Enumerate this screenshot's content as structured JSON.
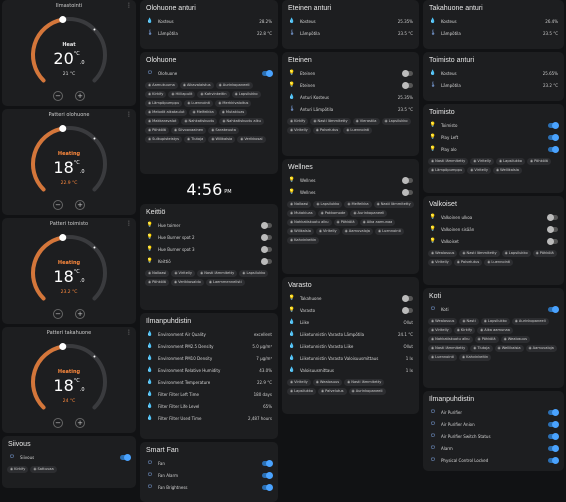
{
  "col1": {
    "thermostats": [
      {
        "name": "Ilmastointi",
        "mode": "Heat",
        "temp": "20",
        "dec": ".0",
        "unit": "°C",
        "current": "21 °C",
        "color": "#e8e8e8",
        "arc": "#d4763a"
      },
      {
        "name": "Patteri olohuone",
        "mode": "Heating",
        "temp": "18",
        "dec": ".0",
        "unit": "°C",
        "current": "22.9 °C",
        "color": "#ff8a3d",
        "arc": "#d4763a"
      },
      {
        "name": "Patteri toimisto",
        "mode": "Heating",
        "temp": "18",
        "dec": ".0",
        "unit": "°C",
        "current": "23.2 °C",
        "color": "#ff8a3d",
        "arc": "#d4763a"
      },
      {
        "name": "Patteri takahuone",
        "mode": "Heating",
        "temp": "18",
        "dec": ".0",
        "unit": "°C",
        "current": "24 °C",
        "color": "#ff8a3d",
        "arc": "#d4763a"
      }
    ],
    "siivous": {
      "title": "Siivous",
      "row": "Siivous",
      "chips": [
        "Kirkify",
        "Sattuvaa"
      ]
    }
  },
  "col2": {
    "olohuone_anturi": {
      "title": "Olohuone anturi",
      "rows": [
        {
          "label": "Kosteus",
          "value": "28.2%"
        },
        {
          "label": "Lämpötila",
          "value": "22.8 °C"
        }
      ]
    },
    "olohuone": {
      "title": "Olohuone",
      "row": "Olohuone",
      "chips": [
        "Aamukuuma",
        "Aikavalaistus",
        "Aurinkopaneeli",
        "Kirkify",
        "Hiiliapulit",
        "Kahvinkeitin",
        "Lapsilukko",
        "Lämpöpumppu",
        "Luennointi",
        "Merkkivaloitus",
        "Melodit aikataulut",
        "Melfeikka",
        "Mutakiuas",
        "Makkaravalot",
        "Nahkatiskuotu",
        "Nahkatiskuotu alku",
        "Pöhkölä",
        "Siivoovaainen",
        "Sarakeuuta",
        "Sulkupisteistys",
        "Tiutoja",
        "Wilikalsia",
        "Verikkosal"
      ]
    },
    "clock": {
      "time": "4:56",
      "ampm": "PM"
    },
    "keittio": {
      "title": "Keittiö",
      "rows": [
        "Hue toimer",
        "Hue Burner spot 2",
        "Hue Burner spot 3",
        "Keittiö"
      ],
      "chips": [
        "Nallaasi",
        "Viritelly",
        "Nasti lämmitetty",
        "Lapsilukko",
        "Pöhkölä",
        "Verikkosaldo",
        "Laemmennelisti"
      ]
    },
    "ilmanpuhdistin": {
      "title": "Ilmanpuhdistin",
      "rows": [
        {
          "label": "Environment Air Quality",
          "value": "excellent"
        },
        {
          "label": "Environment PM2.5 Density",
          "value": "5.0 µg/m³"
        },
        {
          "label": "Environment PM10 Density",
          "value": "7 µg/m³"
        },
        {
          "label": "Environment Relative Humidity",
          "value": "43.0%"
        },
        {
          "label": "Environment Temperature",
          "value": "22.9 °C"
        },
        {
          "label": "Filter Filter Left Time",
          "value": "180 days"
        },
        {
          "label": "Filter Filter Life Level",
          "value": "65%"
        },
        {
          "label": "Filter Filter Used Time",
          "value": "2,487 hours"
        }
      ]
    },
    "smartfan": {
      "title": "Smart Fan",
      "rows": [
        "Fan",
        "Fan Alarm",
        "Fan Brightness"
      ]
    }
  },
  "col3": {
    "eteinen_anturi": {
      "title": "Eteinen anturi",
      "rows": [
        {
          "label": "Kosteus",
          "value": "25.35%"
        },
        {
          "label": "Lämpötila",
          "value": "23.5 °C"
        }
      ]
    },
    "eteinen": {
      "title": "Eteinen",
      "rows": [
        {
          "label": "Eteinen",
          "value": ""
        },
        {
          "label": "Eteinen",
          "value": ""
        },
        {
          "label": "Anturi Kosteus",
          "value": "25.35%"
        },
        {
          "label": "Anturi Lämpötila",
          "value": "23.5 °C"
        }
      ],
      "chips": [
        "Kirkify",
        "Nasti lämmitetty",
        "Vierastila",
        "Lapsilukko",
        "Viritelly",
        "Palvelutus",
        "Luennointi"
      ]
    },
    "wellnes": {
      "title": "Wellnes",
      "rows": [
        "Wellnes",
        "Wellnes"
      ],
      "chips": [
        "Nallaasi",
        "Lapsilukko",
        "Melfeikka",
        "Nasti lämmitetty",
        "Mutakiuas",
        "Pakkomode",
        "Aurinkopaneeli",
        "Nahkatiskuotu alku",
        "Pöhkölä",
        "Aika aamunaa",
        "Wilikalsia",
        "Viritelly",
        "Aamuvaloja",
        "Luennointi",
        "Kahvinkeitin"
      ]
    },
    "varasto": {
      "title": "Varasto",
      "rows": [
        {
          "label": "Takahuone",
          "value": "tog"
        },
        {
          "label": "Varasto",
          "value": "tog"
        },
        {
          "label": "Liike",
          "value": "Ollut"
        },
        {
          "label": "Liiketunnistin Varasto Lämpötila",
          "value": "24.1 °C"
        },
        {
          "label": "Liiketunnistin Varasto Liike",
          "value": "Ollut"
        },
        {
          "label": "Liiketunnistin Varasto Valoisuusmittaus",
          "value": "1 lx"
        },
        {
          "label": "Valoisuusmittaus",
          "value": "1 lx"
        }
      ],
      "chips": [
        "Viritelly",
        "Wealosuus",
        "Nasti lämmitetty",
        "Lapsilukko",
        "Palvelutus",
        "Aurinkopaneeli"
      ]
    }
  },
  "col4": {
    "takahuone_anturi": {
      "title": "Takahuone anturi",
      "rows": [
        {
          "label": "Kosteus",
          "value": "26.4%"
        },
        {
          "label": "Lämpötila",
          "value": "23.5 °C"
        }
      ]
    },
    "toimisto_anturi": {
      "title": "Toimisto anturi",
      "rows": [
        {
          "label": "Kosteus",
          "value": "25.65%"
        },
        {
          "label": "Lämpötila",
          "value": "23.2 °C"
        }
      ]
    },
    "toimisto": {
      "title": "Toimisto",
      "rows": [
        "Toimisto",
        "Play Left",
        "Play alo"
      ],
      "chips": [
        "Nasti lämmitetty",
        "Viritelly",
        "Lapsilukko",
        "Pöhkölä",
        "Lämpöpumppu",
        "Viritelly",
        "Wellikalsia"
      ]
    },
    "valkoiset": {
      "title": "Valkoiset",
      "rows": [
        "Valkoinen ulkoa",
        "Valkoinen sisään",
        "Valkoiset"
      ],
      "chips": [
        "Wealosuus",
        "Nasti lämmitetty",
        "Lapsilukko",
        "Pöhkölä",
        "Viritelly",
        "Palvelutus",
        "Luennointi"
      ]
    },
    "koti": {
      "title": "Koti",
      "row": "Koti",
      "chips": [
        "Wealosuus",
        "Nasti",
        "Lapsilukko",
        "Aurinkopaneeli",
        "Viritelly",
        "Kirkify",
        "Aika aamunaa",
        "Nahkatiskuotu alku",
        "Pöhkölä",
        "Wealosuus",
        "Nasti lämmitetty",
        "Tiutoja",
        "Wellikalsia",
        "Aamuvaloja",
        "Luennointi",
        "Kahvinkeitin"
      ]
    },
    "ilmanpuhdistin": {
      "title": "Ilmanpuhdistin",
      "rows": [
        "Air Purifier",
        "Air Purifier Anion",
        "Air Purifier Switch Status",
        "Alarm",
        "Physical Control Locked"
      ]
    }
  }
}
